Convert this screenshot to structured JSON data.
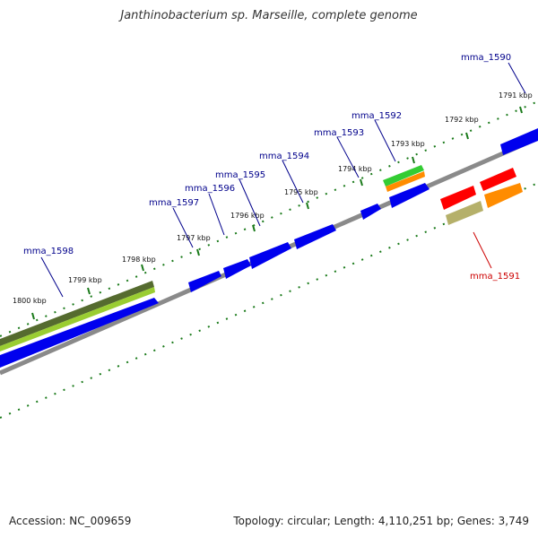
{
  "title": "Janthinobacterium sp. Marseille, complete genome",
  "footer": {
    "accession": "Accession: NC_009659",
    "topology": "Topology: circular; Length: 4,110,251 bp; Genes: 3,749"
  },
  "kbp_labels": [
    "1800 kbp",
    "1799 kbp",
    "1798 kbp",
    "1797 kbp",
    "1796 kbp",
    "1795 kbp",
    "1794 kbp",
    "1793 kbp",
    "1792 kbp",
    "1791 kbp"
  ],
  "gene_labels": [
    "mma_1598",
    "mma_1597",
    "mma_1596",
    "mma_1595",
    "mma_1594",
    "mma_1593",
    "mma_1592",
    "mma_1591",
    "mma_1590"
  ],
  "colors": {
    "forward_label": "#00008b",
    "reverse_label": "#cc0000",
    "gene_forward": "#0000ee",
    "gene_reverse": "#ff0000",
    "backbone": "#888888",
    "tick": "#1a7a1a"
  }
}
